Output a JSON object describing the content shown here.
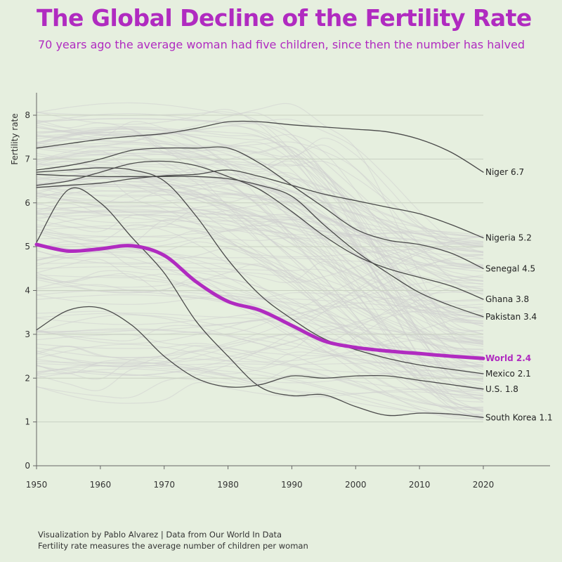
{
  "title": "The Global Decline of the Fertility Rate",
  "subtitle": "70 years ago the average woman had five children, since then the number has halved",
  "footer": {
    "credit": "Visualization by Pablo Alvarez | Data from Our World In Data",
    "note": "Fertility rate measures the average number of children per woman"
  },
  "colors": {
    "background": "#e6efdf",
    "accent": "#b02bc0",
    "highlight_line": "#4a4a4a",
    "background_lines": "#cfcfcf",
    "grid": "#cfd6c9"
  },
  "chart_data": {
    "type": "line",
    "ylabel": "Fertility rate",
    "xlim": [
      1950,
      2020
    ],
    "ylim": [
      0,
      8
    ],
    "x_ticks": [
      1950,
      1960,
      1970,
      1980,
      1990,
      2000,
      2010,
      2020
    ],
    "y_ticks": [
      0,
      1,
      2,
      3,
      4,
      5,
      6,
      7,
      8
    ],
    "grid": "horizontal",
    "x": [
      1950,
      1955,
      1960,
      1965,
      1970,
      1975,
      1980,
      1985,
      1990,
      1995,
      2000,
      2005,
      2010,
      2015,
      2020
    ],
    "series": [
      {
        "name": "Niger",
        "label": "Niger 6.7",
        "values": [
          7.25,
          7.35,
          7.45,
          7.52,
          7.58,
          7.7,
          7.85,
          7.85,
          7.78,
          7.73,
          7.68,
          7.62,
          7.45,
          7.15,
          6.7
        ]
      },
      {
        "name": "Nigeria",
        "label": "Nigeria 5.2",
        "values": [
          6.35,
          6.4,
          6.45,
          6.55,
          6.62,
          6.65,
          6.75,
          6.6,
          6.4,
          6.2,
          6.05,
          5.9,
          5.75,
          5.5,
          5.2
        ]
      },
      {
        "name": "Senegal",
        "label": "Senegal 4.5",
        "values": [
          6.75,
          6.85,
          7.0,
          7.2,
          7.25,
          7.25,
          7.25,
          6.9,
          6.4,
          5.9,
          5.4,
          5.15,
          5.05,
          4.85,
          4.5
        ]
      },
      {
        "name": "Ghana",
        "label": "Ghana 3.8",
        "values": [
          6.4,
          6.5,
          6.7,
          6.9,
          6.95,
          6.85,
          6.6,
          6.3,
          5.8,
          5.25,
          4.8,
          4.5,
          4.3,
          4.1,
          3.8
        ]
      },
      {
        "name": "Pakistan",
        "label": "Pakistan 3.4",
        "values": [
          6.65,
          6.62,
          6.6,
          6.6,
          6.6,
          6.6,
          6.55,
          6.4,
          6.15,
          5.5,
          4.9,
          4.4,
          3.95,
          3.65,
          3.4
        ]
      },
      {
        "name": "World",
        "label": "World 2.4",
        "highlight": true,
        "values": [
          5.05,
          4.9,
          4.95,
          5.02,
          4.8,
          4.2,
          3.75,
          3.55,
          3.2,
          2.85,
          2.7,
          2.62,
          2.56,
          2.5,
          2.45
        ]
      },
      {
        "name": "Mexico",
        "label": "Mexico 2.1",
        "values": [
          6.7,
          6.75,
          6.8,
          6.75,
          6.5,
          5.7,
          4.7,
          3.9,
          3.35,
          2.9,
          2.65,
          2.45,
          2.3,
          2.2,
          2.1
        ]
      },
      {
        "name": "U.S.",
        "label": "U.S. 1.8",
        "values": [
          3.1,
          3.55,
          3.6,
          3.2,
          2.5,
          2.0,
          1.8,
          1.85,
          2.05,
          2.0,
          2.05,
          2.05,
          1.95,
          1.85,
          1.75
        ]
      },
      {
        "name": "South Korea",
        "label": "South Korea 1.1",
        "values": [
          5.1,
          6.3,
          6.0,
          5.2,
          4.4,
          3.3,
          2.5,
          1.8,
          1.6,
          1.62,
          1.35,
          1.15,
          1.2,
          1.18,
          1.1
        ]
      }
    ]
  }
}
